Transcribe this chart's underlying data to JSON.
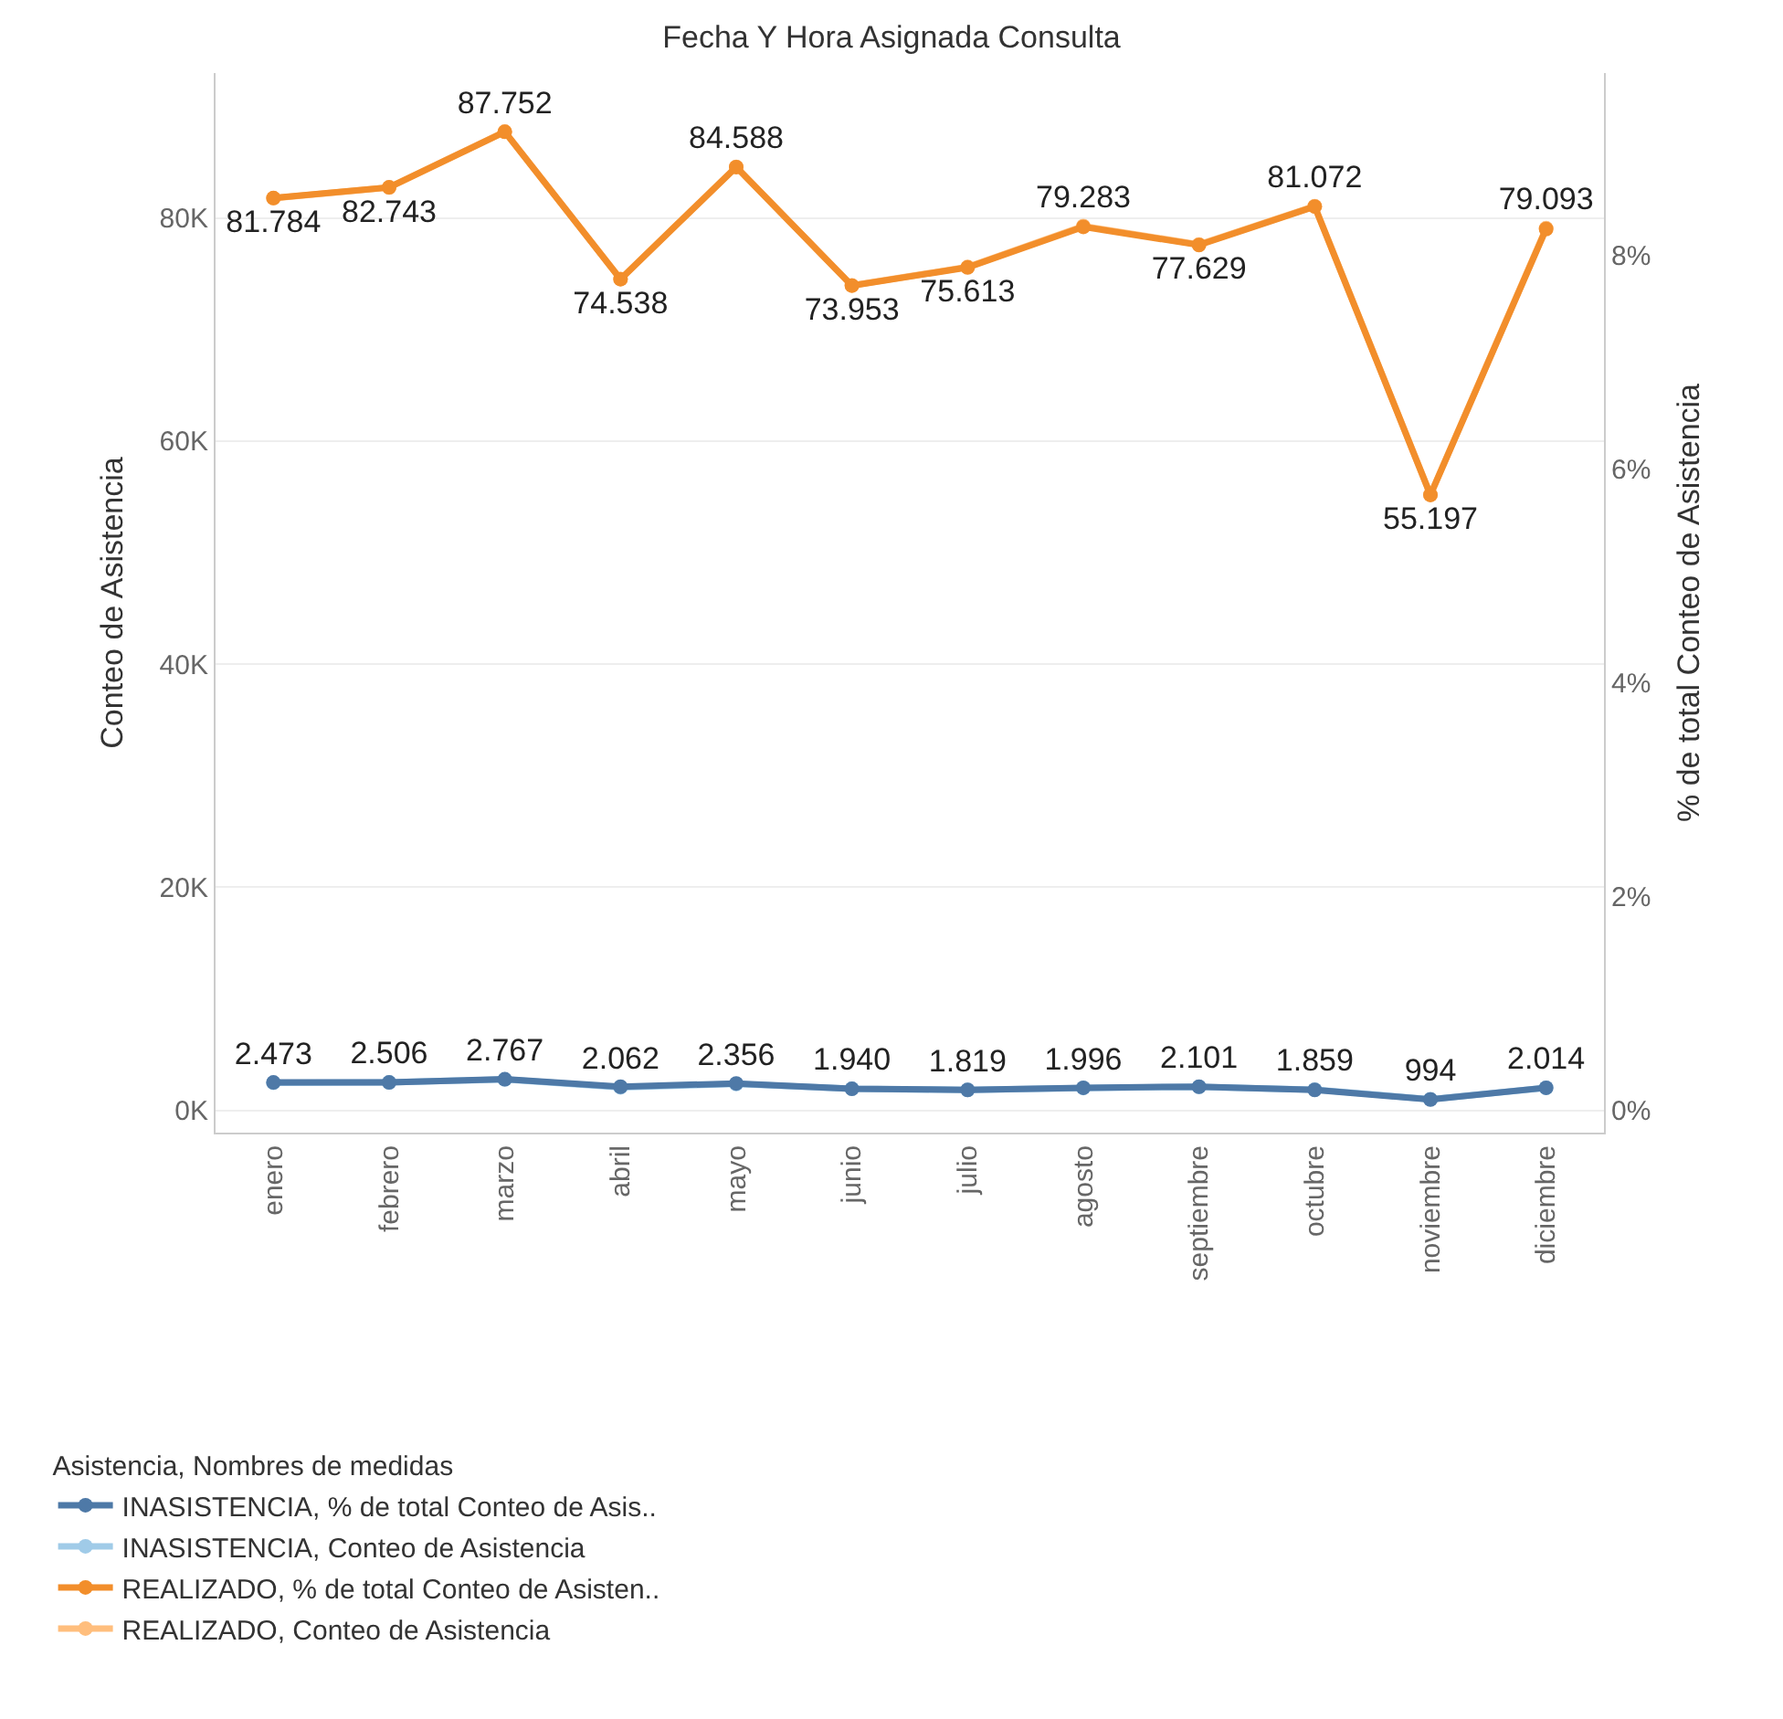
{
  "chart_data": {
    "type": "line",
    "title": "Fecha Y Hora Asignada Consulta",
    "ylabel": "Conteo de Asistencia",
    "y2label": "% de total Conteo de Asistencia",
    "legend_title": "Asistencia, Nombres de medidas",
    "categories": [
      "enero",
      "febrero",
      "marzo",
      "abril",
      "mayo",
      "junio",
      "julio",
      "agosto",
      "septiembre",
      "octubre",
      "noviembre",
      "diciembre"
    ],
    "series": [
      {
        "name": "INASISTENCIA, % de total Conteo de Asis..",
        "color": "#4e79a7",
        "axis": "y2",
        "values": [
          0.26,
          0.26,
          0.29,
          0.22,
          0.25,
          0.2,
          0.19,
          0.21,
          0.22,
          0.19,
          0.1,
          0.21
        ]
      },
      {
        "name": "INASISTENCIA, Conteo de Asistencia",
        "color": "#a0cbe8",
        "axis": "y",
        "values": [
          2473,
          2506,
          2767,
          2062,
          2356,
          1940,
          1819,
          1996,
          2101,
          1859,
          994,
          2014
        ],
        "value_labels": [
          "2.473",
          "2.506",
          "2.767",
          "2.062",
          "2.356",
          "1.940",
          "1.819",
          "1.996",
          "2.101",
          "1.859",
          "994",
          "2.014"
        ]
      },
      {
        "name": "REALIZADO, % de total Conteo de Asisten..",
        "color": "#f28e2b",
        "axis": "y2",
        "values": [
          8.54,
          8.64,
          9.16,
          7.78,
          8.83,
          7.72,
          7.89,
          8.27,
          8.1,
          8.46,
          5.76,
          8.25
        ]
      },
      {
        "name": "REALIZADO, Conteo de Asistencia",
        "color": "#ffbe7d",
        "axis": "y",
        "values": [
          81784,
          82743,
          87752,
          74538,
          84588,
          73953,
          75613,
          79283,
          77629,
          81072,
          55197,
          79093
        ],
        "value_labels": [
          "81.784",
          "82.743",
          "87.752",
          "74.538",
          "84.588",
          "73.953",
          "75.613",
          "79.283",
          "77.629",
          "81.072",
          "55.197",
          "79.093"
        ]
      }
    ],
    "ylim": [
      -2000,
      93000
    ],
    "yticks": [
      {
        "value": 0,
        "label": "0K"
      },
      {
        "value": 20000,
        "label": "20K"
      },
      {
        "value": 40000,
        "label": "40K"
      },
      {
        "value": 60000,
        "label": "60K"
      },
      {
        "value": 80000,
        "label": "80K"
      }
    ],
    "y2lim": [
      -0.21,
      9.71
    ],
    "y2ticks": [
      {
        "value": 0,
        "label": "0%"
      },
      {
        "value": 2,
        "label": "2%"
      },
      {
        "value": 4,
        "label": "4%"
      },
      {
        "value": 6,
        "label": "6%"
      },
      {
        "value": 8,
        "label": "8%"
      }
    ],
    "grid": "y",
    "legend": "bottom left",
    "marker": "circle",
    "line_style": "solid"
  }
}
